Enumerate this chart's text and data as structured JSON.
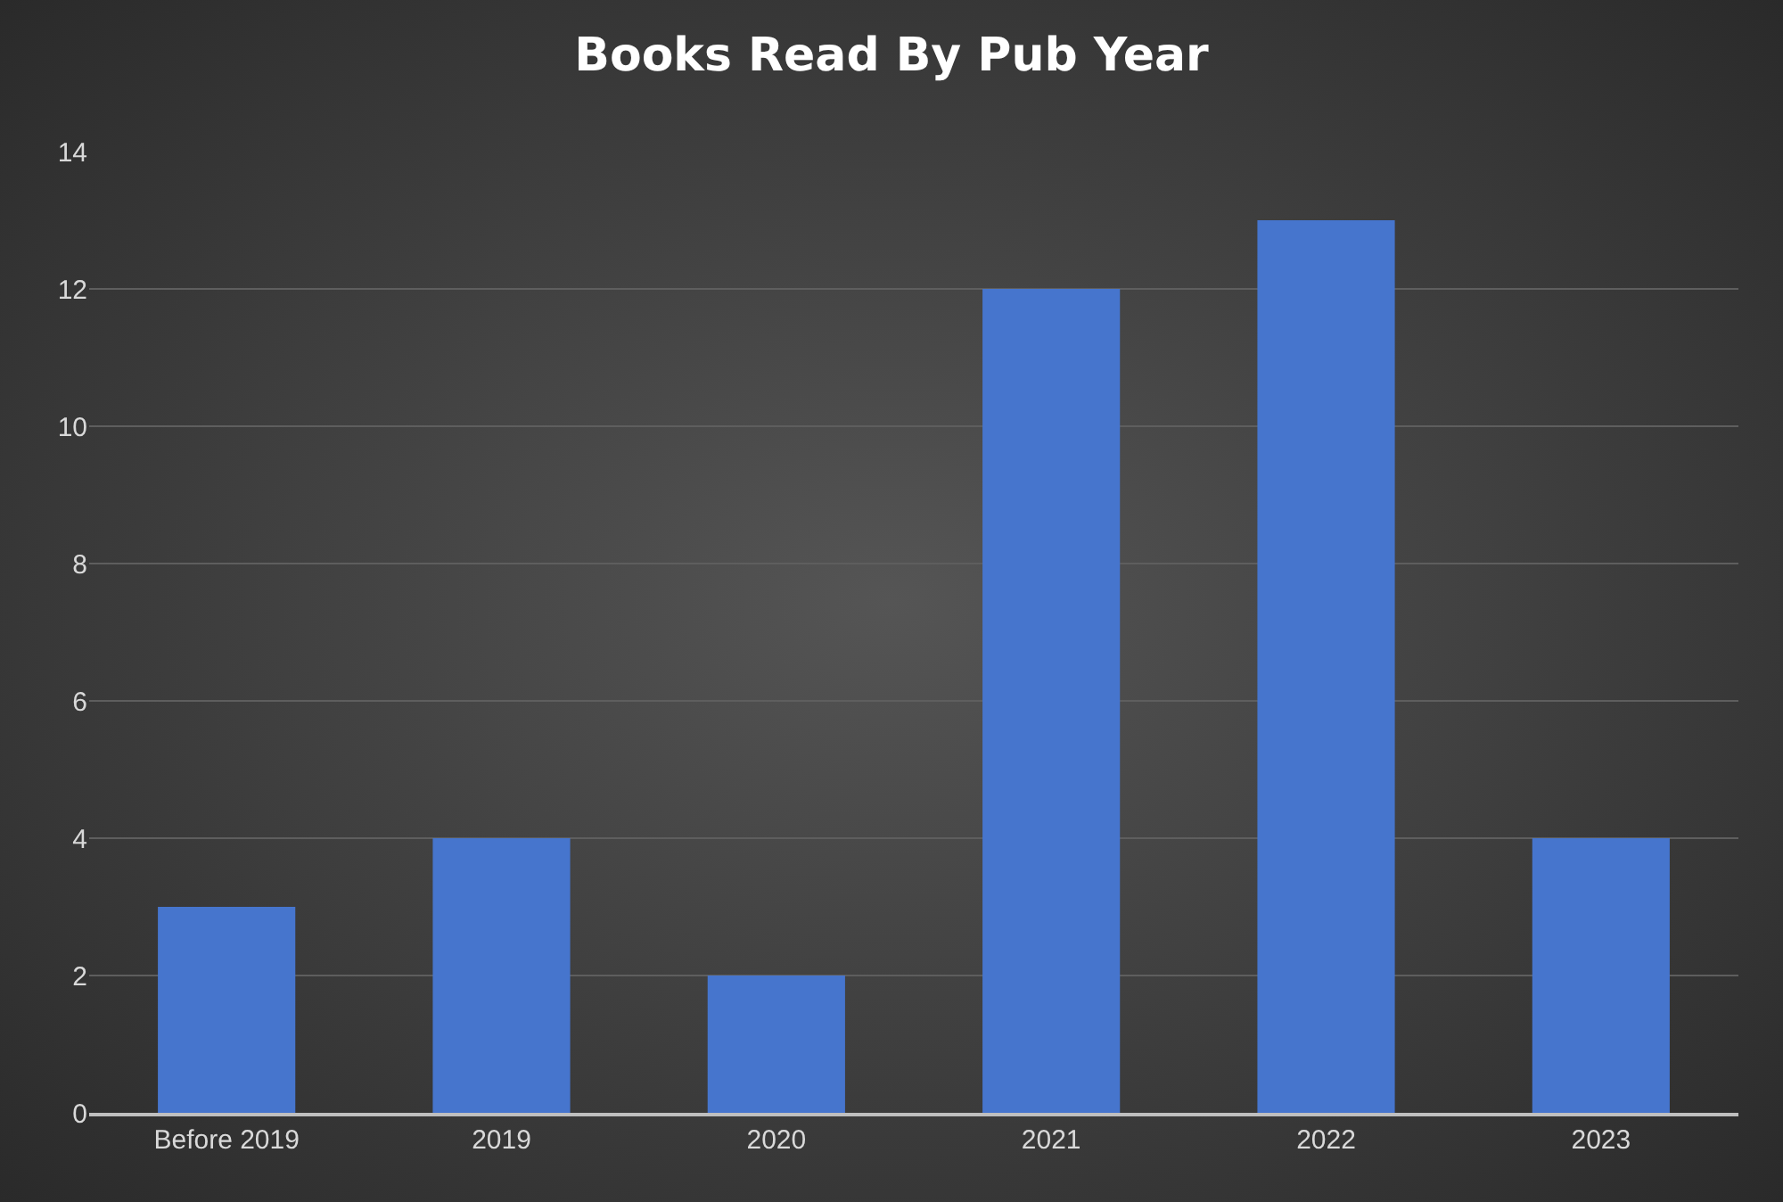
{
  "chart_data": {
    "type": "bar",
    "title": "Books Read By Pub Year",
    "categories": [
      "Before 2019",
      "2019",
      "2020",
      "2021",
      "2022",
      "2023"
    ],
    "values": [
      3,
      4,
      2,
      12,
      13,
      4
    ],
    "color": "#4675cd",
    "ylim": [
      0,
      14
    ],
    "yticks": [
      0,
      2,
      4,
      6,
      8,
      10,
      12,
      14
    ],
    "grid": "y"
  }
}
